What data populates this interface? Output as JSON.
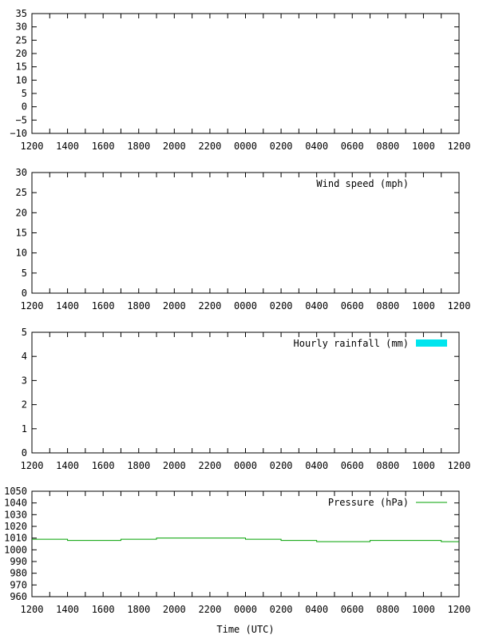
{
  "chart_data": [
    {
      "type": "line",
      "title": "",
      "xlabel": "",
      "ylabel": "",
      "ylim": [
        -10,
        35
      ],
      "yticks": [
        "−10",
        "−5",
        "0",
        "5",
        "10",
        "15",
        "20",
        "25",
        "30",
        "35"
      ],
      "ytick_values": [
        -10,
        -5,
        0,
        5,
        10,
        15,
        20,
        25,
        30,
        35
      ],
      "xtick_labels": [
        "1200",
        "1400",
        "1600",
        "1800",
        "2000",
        "2200",
        "0000",
        "0200",
        "0400",
        "0600",
        "0800",
        "1000",
        "1200"
      ],
      "legend": null,
      "series": []
    },
    {
      "type": "line",
      "title": "",
      "xlabel": "",
      "ylabel": "",
      "ylim": [
        0,
        30
      ],
      "yticks": [
        "0",
        "5",
        "10",
        "15",
        "20",
        "25",
        "30"
      ],
      "ytick_values": [
        0,
        5,
        10,
        15,
        20,
        25,
        30
      ],
      "xtick_labels": [
        "1200",
        "1400",
        "1600",
        "1800",
        "2000",
        "2200",
        "0000",
        "0200",
        "0400",
        "0600",
        "0800",
        "1000",
        "1200"
      ],
      "legend": {
        "label": "Wind speed (mph)",
        "placement": "top-right",
        "swatch": "none"
      },
      "series": []
    },
    {
      "type": "bar",
      "title": "",
      "xlabel": "",
      "ylabel": "",
      "ylim": [
        0,
        5
      ],
      "yticks": [
        "0",
        "1",
        "2",
        "3",
        "4",
        "5"
      ],
      "ytick_values": [
        0,
        1,
        2,
        3,
        4,
        5
      ],
      "xtick_labels": [
        "1200",
        "1400",
        "1600",
        "1800",
        "2000",
        "2200",
        "0000",
        "0200",
        "0400",
        "0600",
        "0800",
        "1000",
        "1200"
      ],
      "legend": {
        "label": "Hourly rainfall (mm)",
        "placement": "top-right",
        "swatch": "box",
        "color": "#00e5ee"
      },
      "series": []
    },
    {
      "type": "line",
      "title": "",
      "xlabel": "Time (UTC)",
      "ylabel": "",
      "ylim": [
        960,
        1050
      ],
      "yticks": [
        "960",
        "970",
        "980",
        "990",
        "1000",
        "1010",
        "1020",
        "1030",
        "1040",
        "1050"
      ],
      "ytick_values": [
        960,
        970,
        980,
        990,
        1000,
        1010,
        1020,
        1030,
        1040,
        1050
      ],
      "xtick_labels": [
        "1200",
        "1400",
        "1600",
        "1800",
        "2000",
        "2200",
        "0000",
        "0200",
        "0400",
        "0600",
        "0800",
        "1000",
        "1200"
      ],
      "legend": {
        "label": "Pressure (hPa)",
        "placement": "top-right",
        "swatch": "line",
        "color": "#00a000"
      },
      "series": [
        {
          "name": "Pressure (hPa)",
          "color": "#00a000",
          "hours": [
            0,
            1,
            2,
            3,
            4,
            5,
            6,
            7,
            8,
            9,
            10,
            11,
            12,
            13,
            14,
            15,
            16,
            17,
            18,
            19,
            20,
            21,
            22,
            23
          ],
          "values": [
            1009,
            1009,
            1008,
            1008,
            1008,
            1009,
            1009,
            1010,
            1010,
            1010,
            1010,
            1010,
            1009,
            1009,
            1008,
            1008,
            1007,
            1007,
            1007,
            1008,
            1008,
            1008,
            1008,
            1007
          ]
        }
      ]
    }
  ]
}
